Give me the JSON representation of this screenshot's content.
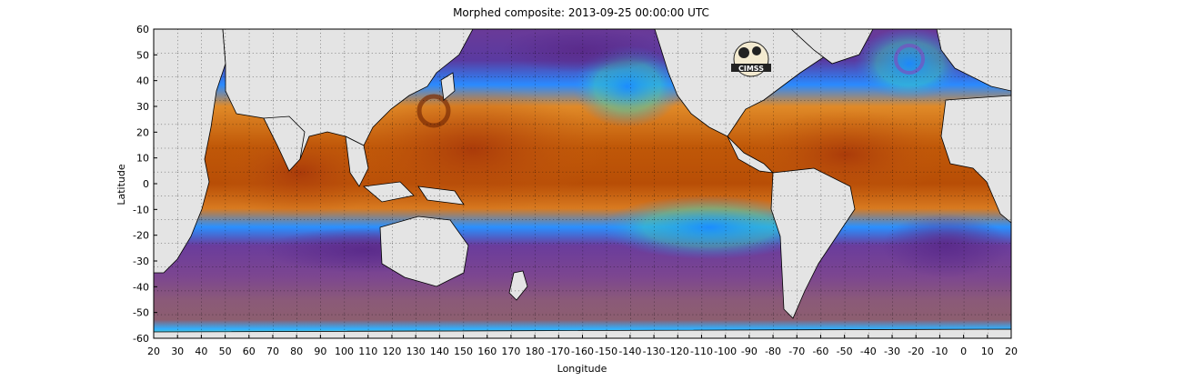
{
  "title": "Morphed composite: 2013-09-25 00:00:00 UTC",
  "xlabel": "Longitude",
  "ylabel": "Latitude",
  "x_ticks": [
    "20",
    "30",
    "40",
    "50",
    "60",
    "70",
    "80",
    "90",
    "100",
    "110",
    "120",
    "130",
    "140",
    "150",
    "160",
    "170",
    "180",
    "-170",
    "-160",
    "-150",
    "-140",
    "-130",
    "-120",
    "-110",
    "-100",
    "-90",
    "-80",
    "-70",
    "-60",
    "-50",
    "-40",
    "-30",
    "-20",
    "-10",
    "0",
    "10",
    "20"
  ],
  "y_ticks": [
    "60",
    "50",
    "40",
    "30",
    "20",
    "10",
    "0",
    "-10",
    "-20",
    "-30",
    "-40",
    "-50",
    "-60"
  ],
  "logo": {
    "text": "CIMSS",
    "icon": "cimss-logo-icon"
  },
  "colors": {
    "land": "#e4e4e4",
    "dry_band": "#7a3fa0",
    "southern_ocean": "#8b5a78",
    "moist": "#c35a08",
    "very_moist": "#a03a06",
    "mid_blue": "#1e96ff",
    "light_green": "#8af07a",
    "yellow": "#f0d060"
  }
}
